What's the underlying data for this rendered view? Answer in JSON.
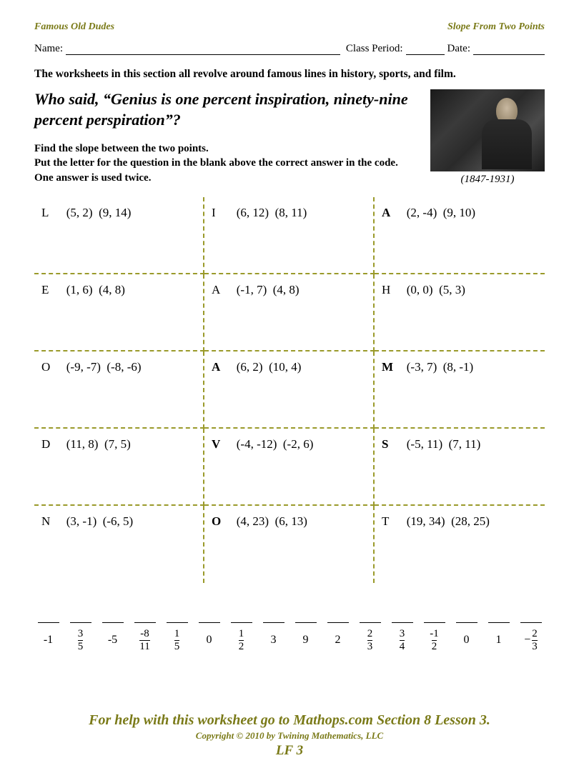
{
  "colors": {
    "olive": "#7a7a18",
    "dash": "#9a9a2a",
    "text": "#000000",
    "background": "#ffffff"
  },
  "header": {
    "left": "Famous Old Dudes",
    "right": "Slope From Two Points"
  },
  "info": {
    "name_label": "Name:",
    "period_label": "Class Period:",
    "date_label": "Date:"
  },
  "intro": "The worksheets in this section all revolve around famous lines in history, sports, and film.",
  "quote": "Who said, “Genius is one percent inspiration, ninety-nine percent perspiration”?",
  "instructions_line1": "Find the slope between the two points.",
  "instructions_line2": "Put the letter for the question in the blank above the correct answer in the code.  One answer is used twice.",
  "portrait": {
    "dates": "(1847-1931)"
  },
  "problems": [
    [
      {
        "letter": "L",
        "p1": "(5, 2)",
        "p2": "(9, 14)",
        "bold": false
      },
      {
        "letter": "I",
        "p1": "(6, 12)",
        "p2": "(8, 11)",
        "bold": false
      },
      {
        "letter": "A",
        "p1": "(2, -4)",
        "p2": "(9, 10)",
        "bold": true
      }
    ],
    [
      {
        "letter": "E",
        "p1": "(1, 6)",
        "p2": "(4, 8)",
        "bold": false
      },
      {
        "letter": "A",
        "p1": "(-1, 7)",
        "p2": "(4, 8)",
        "bold": false
      },
      {
        "letter": "H",
        "p1": "(0, 0)",
        "p2": "(5, 3)",
        "bold": false
      }
    ],
    [
      {
        "letter": "O",
        "p1": "(-9, -7)",
        "p2": "(-8, -6)",
        "bold": false
      },
      {
        "letter": "A",
        "p1": "(6, 2)",
        "p2": "(10, 4)",
        "bold": true
      },
      {
        "letter": "M",
        "p1": "(-3, 7)",
        "p2": "(8, -1)",
        "bold": true
      }
    ],
    [
      {
        "letter": "D",
        "p1": "(11, 8)",
        "p2": "(7, 5)",
        "bold": false
      },
      {
        "letter": "V",
        "p1": "(-4, -12)",
        "p2": "(-2, 6)",
        "bold": true
      },
      {
        "letter": "S",
        "p1": "(-5, 11)",
        "p2": "(7, 11)",
        "bold": true
      }
    ],
    [
      {
        "letter": "N",
        "p1": "(3, -1)",
        "p2": "(-6, 5)",
        "bold": false
      },
      {
        "letter": "O",
        "p1": "(4, 23)",
        "p2": "(6, 13)",
        "bold": true
      },
      {
        "letter": "T",
        "p1": "(19, 34)",
        "p2": "(28, 25)",
        "bold": false
      }
    ]
  ],
  "answers": [
    {
      "display": "-1",
      "type": "int"
    },
    {
      "display": "3/5",
      "type": "frac",
      "num": "3",
      "den": "5"
    },
    {
      "display": "-5",
      "type": "int"
    },
    {
      "display": "-8/11",
      "type": "negfrac",
      "num": "-8",
      "den": "11"
    },
    {
      "display": "1/5",
      "type": "frac",
      "num": "1",
      "den": "5"
    },
    {
      "display": "0",
      "type": "int"
    },
    {
      "display": "1/2",
      "type": "frac",
      "num": "1",
      "den": "2"
    },
    {
      "display": "3",
      "type": "int"
    },
    {
      "display": "9",
      "type": "int"
    },
    {
      "display": "2",
      "type": "int"
    },
    {
      "display": "2/3",
      "type": "frac",
      "num": "2",
      "den": "3"
    },
    {
      "display": "3/4",
      "type": "frac",
      "num": "3",
      "den": "4"
    },
    {
      "display": "-1/2",
      "type": "negfrac",
      "num": "-1",
      "den": "2"
    },
    {
      "display": "0",
      "type": "int"
    },
    {
      "display": "1",
      "type": "int"
    },
    {
      "display": "-2/3",
      "type": "lead-negfrac",
      "num": "2",
      "den": "3"
    }
  ],
  "footer": {
    "help": "For help with this worksheet go to Mathops.com Section 8 Lesson 3.",
    "copyright": "Copyright © 2010 by Twining Mathematics, LLC",
    "code": "LF 3"
  }
}
